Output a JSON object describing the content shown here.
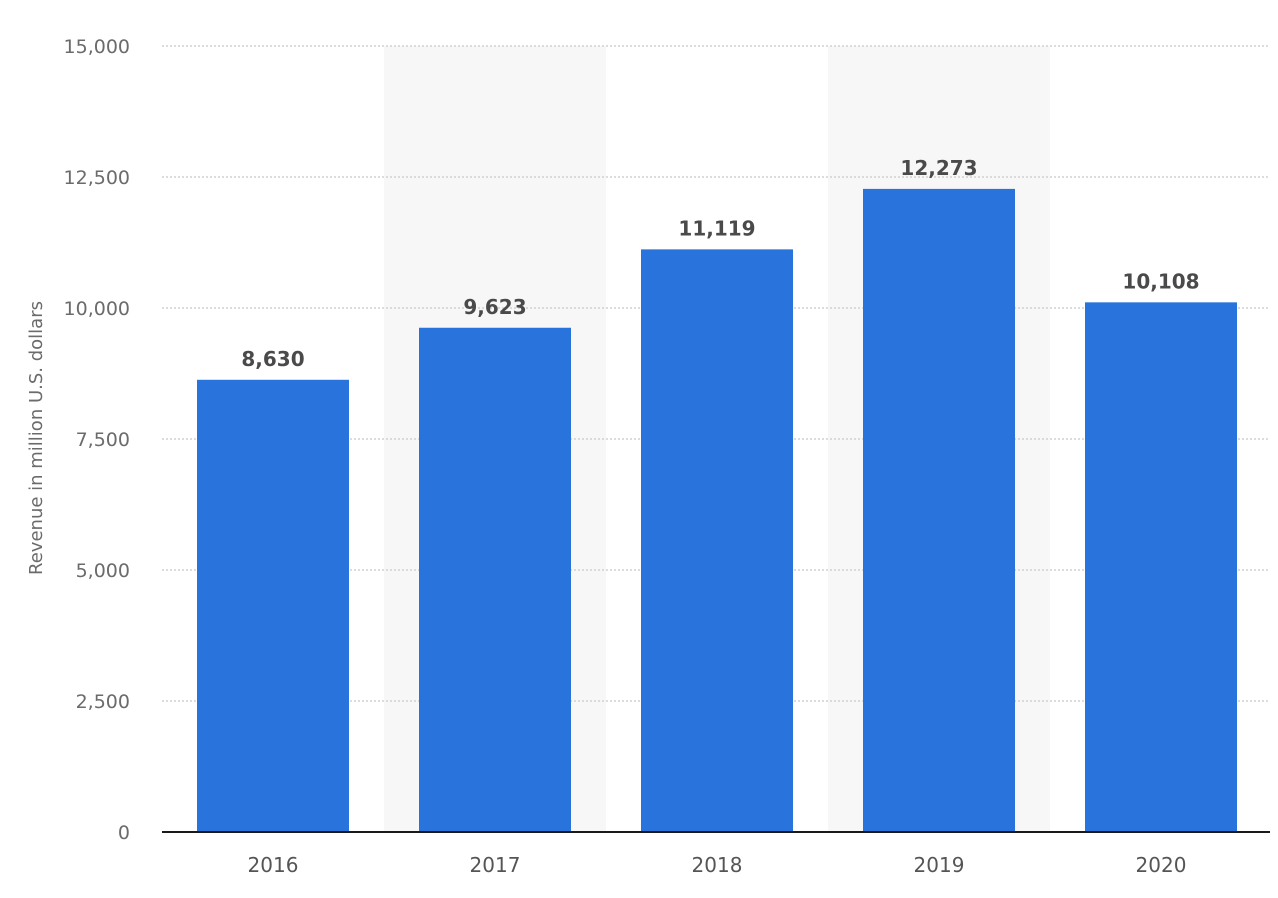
{
  "chart_data": {
    "type": "bar",
    "categories": [
      "2016",
      "2017",
      "2018",
      "2019",
      "2020"
    ],
    "values": [
      8630,
      9623,
      11119,
      12273,
      10108
    ],
    "data_labels": [
      "8,630",
      "9,623",
      "11,119",
      "12,273",
      "10,108"
    ],
    "ylabel": "Revenue in million U.S. dollars",
    "xlabel": "",
    "ylim": [
      0,
      15000
    ],
    "yticks": [
      0,
      2500,
      5000,
      7500,
      10000,
      12500,
      15000
    ],
    "ytick_labels": [
      "0",
      "2,500",
      "5,000",
      "7,500",
      "10,000",
      "12,500",
      "15,000"
    ],
    "grid": true,
    "alternating_column_shading": true,
    "colors": {
      "bar": "#2874dc",
      "grid": "#c8c8c8",
      "baseline": "#1a1a1a",
      "band": "#f7f7f7"
    }
  }
}
